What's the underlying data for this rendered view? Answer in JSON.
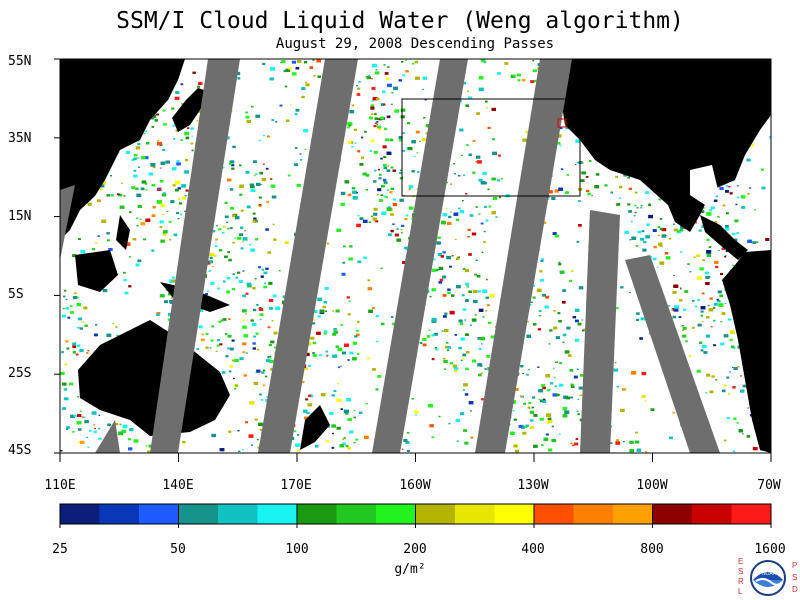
{
  "title": "SSM/I Cloud Liquid Water (Weng algorithm)",
  "subtitle": "August 29, 2008  Descending Passes",
  "lat_labels": [
    "55N",
    "35N",
    "15N",
    "5S",
    "25S",
    "45S"
  ],
  "lon_labels": [
    "110E",
    "140E",
    "170E",
    "160W",
    "130W",
    "100W",
    "70W"
  ],
  "colorbar": {
    "labels": [
      "25",
      "50",
      "100",
      "200",
      "400",
      "800",
      "1600"
    ],
    "units": "g/m²",
    "colors": [
      "#0a1e7a",
      "#0a37b8",
      "#1e5aff",
      "#16948c",
      "#10c2c2",
      "#18f2f0",
      "#1a9a12",
      "#20c820",
      "#22f21e",
      "#b4b400",
      "#e6e600",
      "#ffff00",
      "#ff5000",
      "#ff8000",
      "#ffa000",
      "#8c0000",
      "#c80000",
      "#ff1a1a"
    ]
  },
  "legend_colors": {
    "land": "#000000",
    "missing_data_gap": "#6e6e6e",
    "clear_ocean": "#ffffff"
  },
  "logo": {
    "letters_left": "ESRL",
    "letters_right": "PSD",
    "center": "NOAA"
  }
}
